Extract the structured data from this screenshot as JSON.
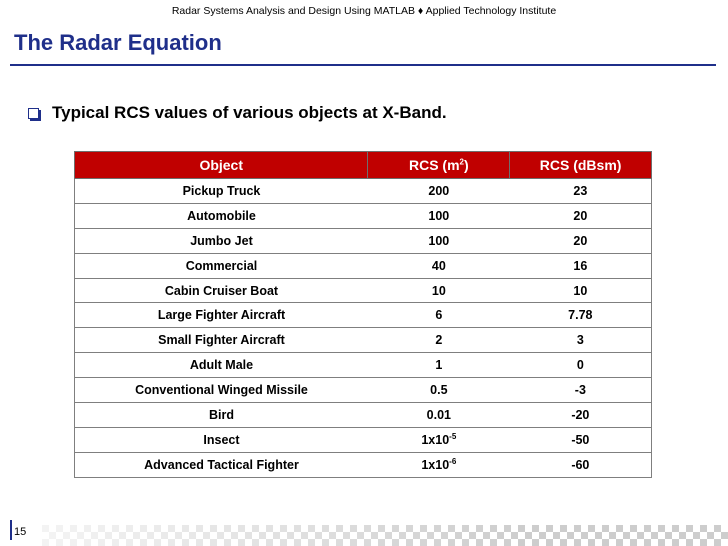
{
  "header": {
    "caption": "Radar Systems Analysis and Design Using MATLAB ♦ Applied Technology Institute"
  },
  "slide": {
    "title": "The Radar Equation",
    "bullet": "Typical RCS values of various objects at X-Band.",
    "page_number": "15"
  },
  "table": {
    "headers": {
      "object": "Object",
      "rcs_m2_base": "RCS (m",
      "rcs_m2_sup": "2",
      "rcs_m2_close": ")",
      "rcs_dbsm": "RCS (dBsm)"
    },
    "rows": [
      {
        "object": "Pickup Truck",
        "m2": "200",
        "m2_sup": "",
        "dbsm": "23"
      },
      {
        "object": "Automobile",
        "m2": "100",
        "m2_sup": "",
        "dbsm": "20"
      },
      {
        "object": "Jumbo Jet",
        "m2": "100",
        "m2_sup": "",
        "dbsm": "20"
      },
      {
        "object": "Commercial",
        "m2": "40",
        "m2_sup": "",
        "dbsm": "16"
      },
      {
        "object": "Cabin Cruiser Boat",
        "m2": "10",
        "m2_sup": "",
        "dbsm": "10"
      },
      {
        "object": "Large Fighter Aircraft",
        "m2": "6",
        "m2_sup": "",
        "dbsm": "7.78"
      },
      {
        "object": "Small Fighter Aircraft",
        "m2": "2",
        "m2_sup": "",
        "dbsm": "3"
      },
      {
        "object": "Adult Male",
        "m2": "1",
        "m2_sup": "",
        "dbsm": "0"
      },
      {
        "object": "Conventional Winged Missile",
        "m2": "0.5",
        "m2_sup": "",
        "dbsm": "-3"
      },
      {
        "object": "Bird",
        "m2": "0.01",
        "m2_sup": "",
        "dbsm": "-20"
      },
      {
        "object": "Insect",
        "m2": "1x10",
        "m2_sup": "-5",
        "dbsm": "-50"
      },
      {
        "object": "Advanced Tactical Fighter",
        "m2": "1x10",
        "m2_sup": "-6",
        "dbsm": "-60"
      }
    ]
  },
  "colors": {
    "title_blue": "#1f2f8a",
    "header_red": "#c00000",
    "checker_gray": "#c8c8c8"
  }
}
